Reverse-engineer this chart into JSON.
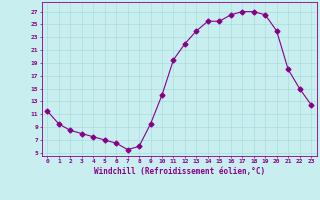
{
  "x": [
    0,
    1,
    2,
    3,
    4,
    5,
    6,
    7,
    8,
    9,
    10,
    11,
    12,
    13,
    14,
    15,
    16,
    17,
    18,
    19,
    20,
    21,
    22,
    23
  ],
  "y": [
    11.5,
    9.5,
    8.5,
    8.0,
    7.5,
    7.0,
    6.5,
    5.5,
    6.0,
    9.5,
    14.0,
    19.5,
    22.0,
    24.0,
    25.5,
    25.5,
    26.5,
    27.0,
    27.0,
    26.5,
    24.0,
    18.0,
    15.0,
    12.5
  ],
  "line_color": "#880088",
  "marker": "D",
  "marker_size": 2.5,
  "bg_color": "#c8eef0",
  "grid_color": "#aadddd",
  "xlabel": "Windchill (Refroidissement éolien,°C)",
  "ylabel_ticks": [
    5,
    7,
    9,
    11,
    13,
    15,
    17,
    19,
    21,
    23,
    25,
    27
  ],
  "xlim": [
    -0.5,
    23.5
  ],
  "ylim": [
    4.5,
    28.5
  ],
  "title": ""
}
